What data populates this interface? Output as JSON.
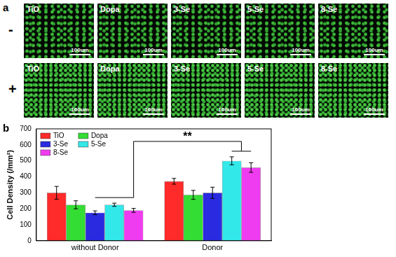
{
  "figure": {
    "panel_a": {
      "label": "a",
      "scale_bar": "100um",
      "rows": [
        {
          "condition": "-",
          "images": [
            "TiO",
            "Dopa",
            "3-Se",
            "5-Se",
            "8-Se"
          ]
        },
        {
          "condition": "+",
          "images": [
            "TiO",
            "Dopa",
            "3-Se",
            "5-Se",
            "8-Se"
          ]
        }
      ]
    },
    "panel_b": {
      "label": "b"
    }
  },
  "chart_data": {
    "type": "bar",
    "y_label": "Cell Density (/mm²)",
    "categories": [
      "without Donor",
      "Donor"
    ],
    "series": [
      {
        "name": "TiO",
        "color": "#ff2a2a",
        "values": [
          300,
          372
        ],
        "errors": [
          40,
          18
        ]
      },
      {
        "name": "Dopa",
        "color": "#33dd33",
        "values": [
          225,
          287
        ],
        "errors": [
          25,
          28
        ]
      },
      {
        "name": "3-Se",
        "color": "#2a2ae0",
        "values": [
          175,
          300
        ],
        "errors": [
          12,
          35
        ]
      },
      {
        "name": "5-Se",
        "color": "#33e8e8",
        "values": [
          225,
          500
        ],
        "errors": [
          10,
          25
        ]
      },
      {
        "name": "8-Se",
        "color": "#f03cf0",
        "values": [
          190,
          458
        ],
        "errors": [
          12,
          30
        ]
      }
    ],
    "ylim": [
      0,
      700
    ],
    "yticks": [
      0,
      100,
      200,
      300,
      400,
      500,
      600,
      700
    ],
    "grid": false,
    "legend": "top-left",
    "annotations": [
      {
        "text": "**"
      }
    ]
  }
}
